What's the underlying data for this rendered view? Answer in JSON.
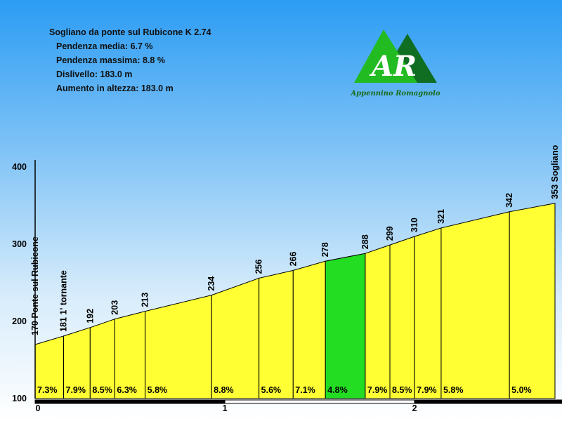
{
  "header": {
    "title": "Sogliano da ponte sul Rubicone  K 2.74",
    "stats": [
      "Pendenza media: 6.7 %",
      "Pendenza massima: 8.8 %",
      "Dislivello: 183.0 m",
      "Aumento in altezza: 183.0 m"
    ]
  },
  "logo": {
    "letters": "AR",
    "caption": "Appennino Romagnolo"
  },
  "colors": {
    "fill_default": "#ffff33",
    "fill_highlight": "#22dd22",
    "outline": "#000000",
    "logo_light": "#22bb22",
    "logo_dark": "#106e22"
  },
  "chart_data": {
    "type": "area",
    "xlabel": "",
    "ylabel": "",
    "xlim": [
      0,
      2.74
    ],
    "ylim": [
      100,
      400
    ],
    "y_ticks": [
      "100",
      "200",
      "300",
      "400"
    ],
    "x_ticks": [
      "0",
      "1",
      "2"
    ],
    "points": [
      {
        "x": 0.0,
        "y": 170,
        "label": "170 Ponte sul Rubicone"
      },
      {
        "x": 0.15,
        "y": 181,
        "label": "181 1' tornante"
      },
      {
        "x": 0.29,
        "y": 192,
        "label": "192"
      },
      {
        "x": 0.42,
        "y": 203,
        "label": "203"
      },
      {
        "x": 0.58,
        "y": 213,
        "label": "213"
      },
      {
        "x": 0.93,
        "y": 234,
        "label": "234"
      },
      {
        "x": 1.18,
        "y": 256,
        "label": "256"
      },
      {
        "x": 1.36,
        "y": 266,
        "label": "266"
      },
      {
        "x": 1.53,
        "y": 278,
        "label": "278"
      },
      {
        "x": 1.74,
        "y": 288,
        "label": "288"
      },
      {
        "x": 1.87,
        "y": 299,
        "label": "299"
      },
      {
        "x": 2.0,
        "y": 310,
        "label": "310"
      },
      {
        "x": 2.14,
        "y": 321,
        "label": "321"
      },
      {
        "x": 2.5,
        "y": 342,
        "label": "342"
      },
      {
        "x": 2.74,
        "y": 353,
        "label": "353 Sogliano"
      }
    ],
    "segment_gradients": [
      "7.3%",
      "7.9%",
      "8.5%",
      "6.3%",
      "5.8%",
      "8.8%",
      "5.6%",
      "7.1%",
      "4.8%",
      "7.9%",
      "8.5%",
      "7.9%",
      "5.8%",
      "5.0%"
    ],
    "highlight_segment": 8
  }
}
